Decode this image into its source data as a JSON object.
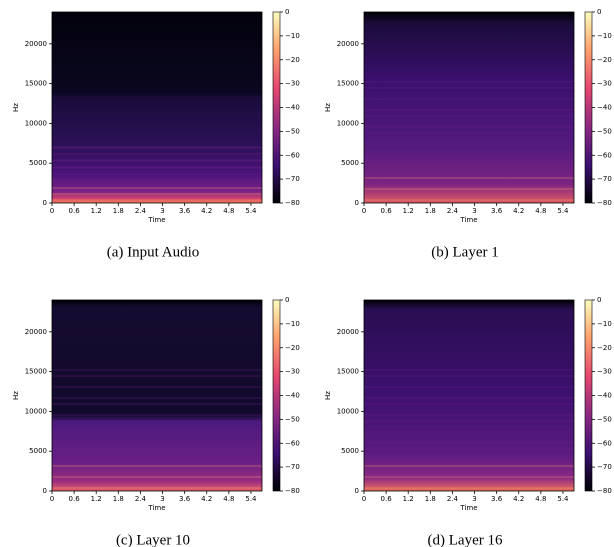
{
  "chart_data": [
    {
      "type": "spectrogram",
      "title": "(a) Input Audio",
      "xlabel": "Time",
      "ylabel": "Hz",
      "xlim": [
        0,
        5.7
      ],
      "xticks": [
        0,
        0.6,
        1.2,
        1.8,
        2.4,
        3,
        3.6,
        4.2,
        4.8,
        5.4
      ],
      "ylim": [
        0,
        24000
      ],
      "yticks": [
        0,
        5000,
        10000,
        15000,
        20000
      ],
      "clim": [
        -80,
        0
      ],
      "cticks": [
        0,
        {
          "value": -10,
          "label": "−10"
        },
        {
          "value": -20,
          "label": "−20"
        },
        {
          "value": -30,
          "label": "−30"
        },
        {
          "value": -40,
          "label": "−40"
        },
        {
          "value": -50,
          "label": "−50"
        },
        {
          "value": -60,
          "label": "−60"
        },
        {
          "value": -70,
          "label": "−70"
        },
        {
          "value": -80,
          "label": "−80"
        }
      ]
    },
    {
      "type": "spectrogram",
      "title": "(b) Layer 1",
      "xlabel": "Time",
      "ylabel": "Hz",
      "xlim": [
        0,
        5.7
      ],
      "xticks": [
        0,
        0.6,
        1.2,
        1.8,
        2.4,
        3,
        3.6,
        4.2,
        4.8,
        5.4
      ],
      "ylim": [
        0,
        24000
      ],
      "yticks": [
        0,
        5000,
        10000,
        15000,
        20000
      ],
      "clim": [
        -80,
        0
      ],
      "cticks": [
        0,
        {
          "value": -10,
          "label": "−10"
        },
        {
          "value": -20,
          "label": "−20"
        },
        {
          "value": -30,
          "label": "−30"
        },
        {
          "value": -40,
          "label": "−40"
        },
        {
          "value": -50,
          "label": "−50"
        },
        {
          "value": -60,
          "label": "−60"
        },
        {
          "value": -70,
          "label": "−70"
        },
        {
          "value": -80,
          "label": "−80"
        }
      ]
    },
    {
      "type": "spectrogram",
      "title": "(c) Layer 10",
      "xlabel": "Time",
      "ylabel": "Hz",
      "xlim": [
        0,
        5.7
      ],
      "xticks": [
        0,
        0.6,
        1.2,
        1.8,
        2.4,
        3,
        3.6,
        4.2,
        4.8,
        5.4
      ],
      "ylim": [
        0,
        24000
      ],
      "yticks": [
        0,
        5000,
        10000,
        15000,
        20000
      ],
      "clim": [
        -80,
        0
      ],
      "cticks": [
        0,
        {
          "value": -10,
          "label": "−10"
        },
        {
          "value": -20,
          "label": "−20"
        },
        {
          "value": -30,
          "label": "−30"
        },
        {
          "value": -40,
          "label": "−40"
        },
        {
          "value": -50,
          "label": "−50"
        },
        {
          "value": -60,
          "label": "−60"
        },
        {
          "value": -70,
          "label": "−70"
        },
        {
          "value": -80,
          "label": "−80"
        }
      ]
    },
    {
      "type": "spectrogram",
      "title": "(d) Layer 16",
      "xlabel": "Time",
      "ylabel": "Hz",
      "xlim": [
        0,
        5.7
      ],
      "xticks": [
        0,
        0.6,
        1.2,
        1.8,
        2.4,
        3,
        3.6,
        4.2,
        4.8,
        5.4
      ],
      "ylim": [
        0,
        24000
      ],
      "yticks": [
        0,
        5000,
        10000,
        15000,
        20000
      ],
      "clim": [
        -80,
        0
      ],
      "cticks": [
        0,
        {
          "value": -10,
          "label": "−10"
        },
        {
          "value": -20,
          "label": "−20"
        },
        {
          "value": -30,
          "label": "−30"
        },
        {
          "value": -40,
          "label": "−40"
        },
        {
          "value": -50,
          "label": "−50"
        },
        {
          "value": -60,
          "label": "−60"
        },
        {
          "value": -70,
          "label": "−70"
        },
        {
          "value": -80,
          "label": "−80"
        }
      ]
    }
  ]
}
